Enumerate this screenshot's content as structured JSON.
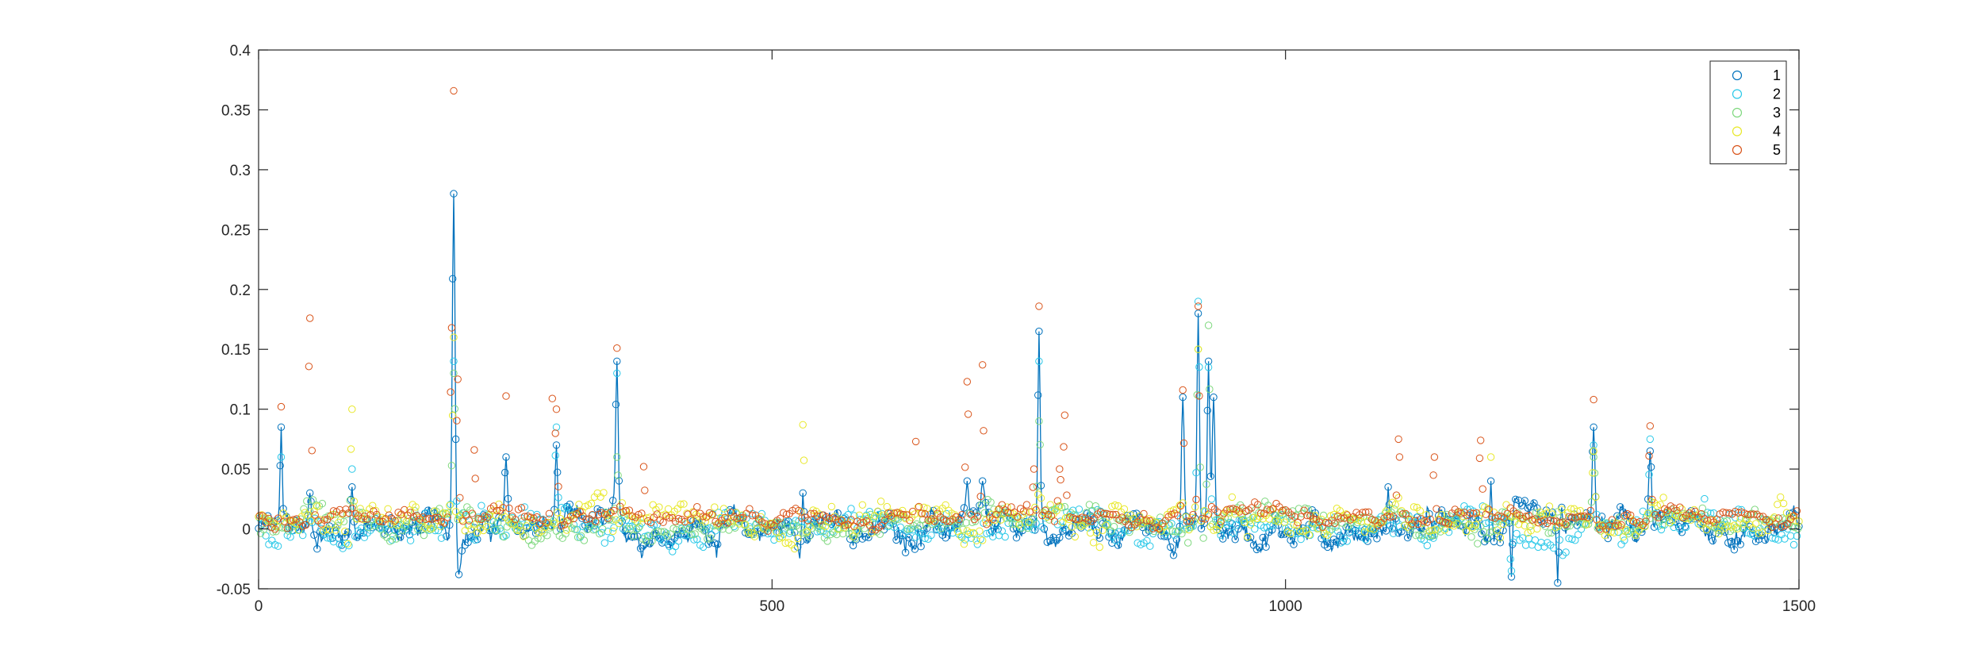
{
  "chart_data": {
    "type": "scatter",
    "title": "",
    "xlabel": "",
    "ylabel": "",
    "xlim": [
      0,
      1500
    ],
    "ylim": [
      -0.05,
      0.4
    ],
    "x_ticks": [
      0,
      500,
      1000,
      1500
    ],
    "y_ticks": [
      -0.05,
      0,
      0.05,
      0.1,
      0.15,
      0.2,
      0.25,
      0.3,
      0.35,
      0.4
    ],
    "x_tick_labels": [
      "0",
      "500",
      "1000",
      "1500"
    ],
    "y_tick_labels": [
      "-0.05",
      "0",
      "0.05",
      "0.1",
      "0.15",
      "0.2",
      "0.25",
      "0.3",
      "0.35",
      "0.4"
    ],
    "grid": false,
    "box": true,
    "legend_position": "top-right",
    "marker": "open-circle",
    "connecting_line_color": "#0072BD",
    "connecting_line_series": "1",
    "series": [
      {
        "name": "1",
        "color": "#0072BD",
        "peaks": [
          [
            22,
            0.085
          ],
          [
            50,
            0.03
          ],
          [
            91,
            0.035
          ],
          [
            190,
            0.28
          ],
          [
            241,
            0.06
          ],
          [
            290,
            0.07
          ],
          [
            349,
            0.14
          ],
          [
            530,
            0.03
          ],
          [
            690,
            0.04
          ],
          [
            705,
            0.04
          ],
          [
            760,
            0.165
          ],
          [
            900,
            0.11
          ],
          [
            915,
            0.18
          ],
          [
            925,
            0.14
          ],
          [
            930,
            0.11
          ],
          [
            1100,
            0.035
          ],
          [
            1200,
            0.04
          ],
          [
            1300,
            0.085
          ],
          [
            1355,
            0.065
          ]
        ],
        "dips": [
          [
            195,
            -0.038
          ],
          [
            1220,
            -0.04
          ],
          [
            1265,
            -0.045
          ]
        ],
        "base": 0.0,
        "spread": 0.012
      },
      {
        "name": "2",
        "color": "#28C8E8",
        "peaks": [
          [
            22,
            0.06
          ],
          [
            91,
            0.05
          ],
          [
            190,
            0.14
          ],
          [
            290,
            0.085
          ],
          [
            349,
            0.13
          ],
          [
            760,
            0.14
          ],
          [
            915,
            0.19
          ],
          [
            925,
            0.135
          ],
          [
            1300,
            0.07
          ],
          [
            1355,
            0.075
          ]
        ],
        "dips": [
          [
            1220,
            -0.035
          ]
        ],
        "base": 0.003,
        "spread": 0.011
      },
      {
        "name": "3",
        "color": "#7ED87E",
        "peaks": [
          [
            190,
            0.13
          ],
          [
            349,
            0.06
          ],
          [
            760,
            0.09
          ],
          [
            915,
            0.15
          ],
          [
            925,
            0.17
          ],
          [
            1300,
            0.06
          ]
        ],
        "dips": [],
        "base": 0.005,
        "spread": 0.01
      },
      {
        "name": "4",
        "color": "#E8E828",
        "peaks": [
          [
            91,
            0.1
          ],
          [
            190,
            0.16
          ],
          [
            530,
            0.087
          ],
          [
            915,
            0.15
          ],
          [
            1200,
            0.06
          ],
          [
            1300,
            0.065
          ]
        ],
        "dips": [],
        "base": 0.008,
        "spread": 0.012
      },
      {
        "name": "5",
        "color": "#D95319",
        "peaks": [
          [
            22,
            0.102
          ],
          [
            50,
            0.176
          ],
          [
            190,
            0.39
          ],
          [
            188,
            0.168
          ],
          [
            194,
            0.125
          ],
          [
            210,
            0.066
          ],
          [
            241,
            0.111
          ],
          [
            286,
            0.109
          ],
          [
            290,
            0.1
          ],
          [
            349,
            0.151
          ],
          [
            375,
            0.052
          ],
          [
            640,
            0.073
          ],
          [
            690,
            0.123
          ],
          [
            705,
            0.137
          ],
          [
            755,
            0.05
          ],
          [
            760,
            0.186
          ],
          [
            780,
            0.05
          ],
          [
            785,
            0.095
          ],
          [
            900,
            0.116
          ],
          [
            915,
            0.186
          ],
          [
            1110,
            0.075
          ],
          [
            1145,
            0.06
          ],
          [
            1190,
            0.074
          ],
          [
            1300,
            0.108
          ],
          [
            1355,
            0.086
          ]
        ],
        "dips": [],
        "base": 0.01,
        "spread": 0.006
      }
    ]
  },
  "legend": {
    "items": [
      {
        "label": "1",
        "color": "#0072BD"
      },
      {
        "label": "2",
        "color": "#28C8E8"
      },
      {
        "label": "3",
        "color": "#7ED87E"
      },
      {
        "label": "4",
        "color": "#E8E828"
      },
      {
        "label": "5",
        "color": "#D95319"
      }
    ]
  }
}
